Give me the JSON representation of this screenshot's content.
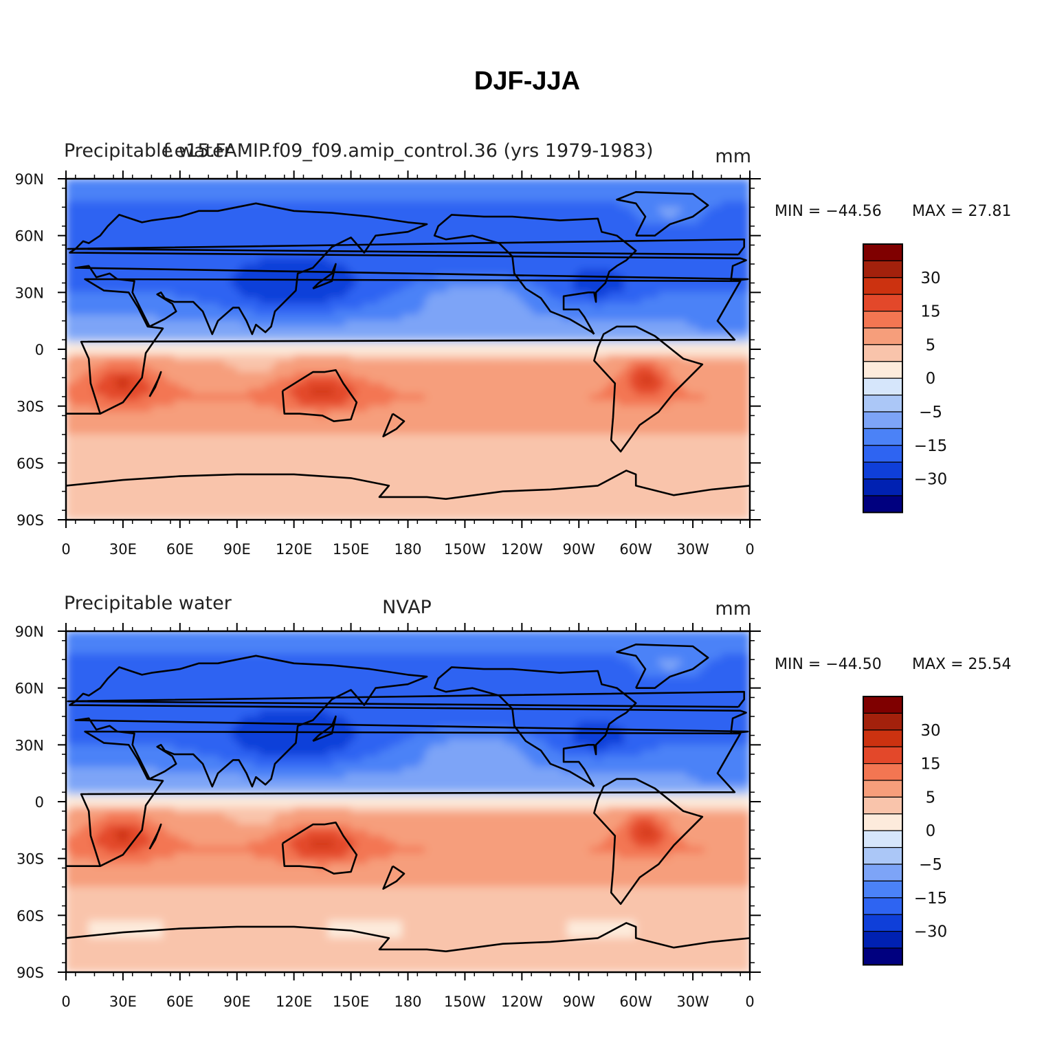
{
  "figure": {
    "title": "DJF-JJA"
  },
  "colors": {
    "levels": [
      "#00007f",
      "#0021b2",
      "#0f3fd9",
      "#2e64f2",
      "#4b82f7",
      "#7da4f7",
      "#abc7f7",
      "#d6e6fb",
      "#fdebdc",
      "#f9c4ab",
      "#f69e7b",
      "#f37652",
      "#e3482a",
      "#cc3210",
      "#a3210c",
      "#7f0000"
    ]
  },
  "chart_data": [
    {
      "type": "heatmap",
      "panel": "top",
      "title_left": "Precipitable water",
      "title_center": "f.e15.FAMIP.f09_f09.amip_control.36 (yrs 1979-1983)",
      "title_right": "mm",
      "xlabel": "",
      "ylabel": "",
      "x_ticks": [
        "0",
        "30E",
        "60E",
        "90E",
        "120E",
        "150E",
        "180",
        "150W",
        "120W",
        "90W",
        "60W",
        "30W",
        "0"
      ],
      "y_ticks": [
        "90N",
        "60N",
        "30N",
        "0",
        "30S",
        "60S",
        "90S"
      ],
      "xlim": [
        0,
        360
      ],
      "ylim": [
        -90,
        90
      ],
      "min_label": "MIN = −44.56",
      "max_label": "MAX =   27.81",
      "min": -44.56,
      "max": 27.81,
      "colorbar_labels": [
        "30",
        "15",
        "5",
        "0",
        "−5",
        "−15",
        "−30"
      ]
    },
    {
      "type": "heatmap",
      "panel": "bottom",
      "title_left": "Precipitable water",
      "title_center": "NVAP",
      "title_right": "mm",
      "xlabel": "",
      "ylabel": "",
      "x_ticks": [
        "0",
        "30E",
        "60E",
        "90E",
        "120E",
        "150E",
        "180",
        "150W",
        "120W",
        "90W",
        "60W",
        "30W",
        "0"
      ],
      "y_ticks": [
        "90N",
        "60N",
        "30N",
        "0",
        "30S",
        "60S",
        "90S"
      ],
      "xlim": [
        0,
        360
      ],
      "ylim": [
        -90,
        90
      ],
      "min_label": "MIN = −44.50",
      "max_label": "MAX =   25.54",
      "min": -44.5,
      "max": 25.54,
      "colorbar_labels": [
        "30",
        "15",
        "5",
        "0",
        "−5",
        "−15",
        "−30"
      ]
    }
  ]
}
